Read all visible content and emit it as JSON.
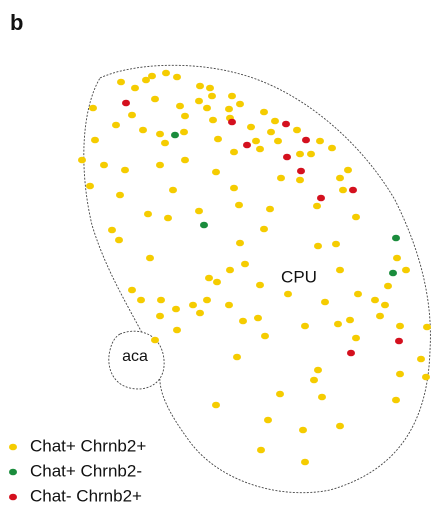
{
  "panel_label": "b",
  "regions": [
    "CPU",
    "aca"
  ],
  "legend": [
    {
      "label": "Chat+ Chrnb2+",
      "color": "#f5cc00"
    },
    {
      "label": "Chat+ Chrnb2-",
      "color": "#1a8c3c"
    },
    {
      "label": "Chat-  Chrnb2+",
      "color": "#d4101e"
    }
  ]
}
